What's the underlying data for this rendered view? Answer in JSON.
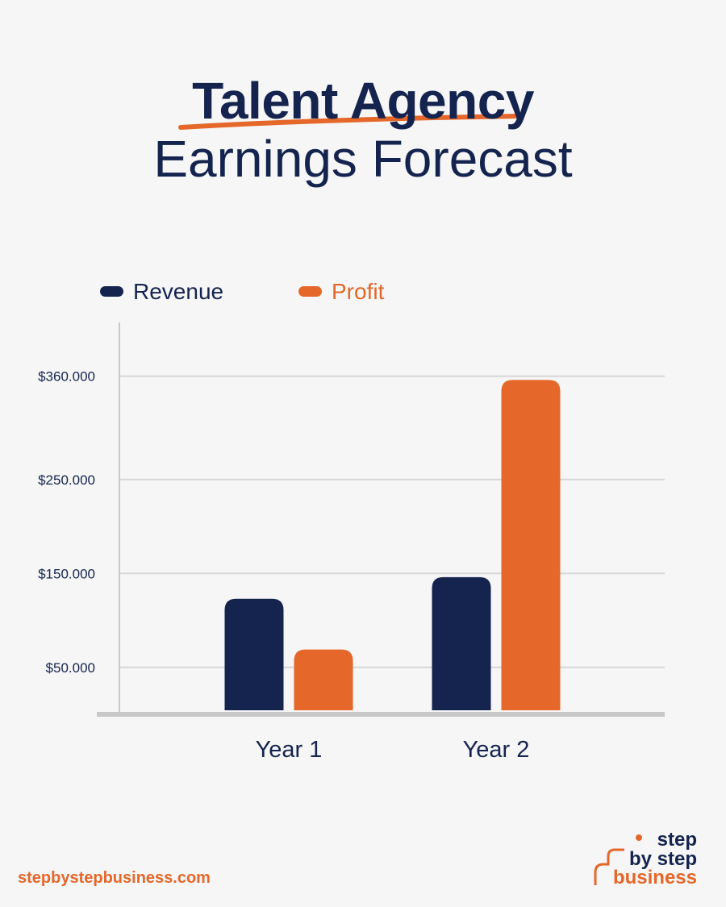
{
  "title": {
    "line1": "Talent Agency",
    "line2": "Earnings Forecast"
  },
  "colors": {
    "navy": "#14244f",
    "orange": "#e5672a",
    "grid": "#d6d6d6",
    "axis": "#c8c8c8",
    "background": "#f6f6f6"
  },
  "chart_data": {
    "type": "bar",
    "categories": [
      "Year 1",
      "Year 2"
    ],
    "series": [
      {
        "name": "Revenue",
        "color": "#14244f",
        "values": [
          123000,
          146000
        ]
      },
      {
        "name": "Profit",
        "color": "#e5672a",
        "values": [
          69000,
          356000
        ]
      }
    ],
    "yticks": [
      {
        "value": 50000,
        "label": "$50.000"
      },
      {
        "value": 150000,
        "label": "$150.000"
      },
      {
        "value": 250000,
        "label": "$250.000"
      },
      {
        "value": 360000,
        "label": "$360.000"
      }
    ],
    "ylim": [
      0,
      360000
    ],
    "grid": true,
    "legend": "top-left"
  },
  "footer": {
    "url": "stepbystepbusiness.com"
  },
  "logo": {
    "line1": "step",
    "line2": "by step",
    "line3": "business"
  }
}
